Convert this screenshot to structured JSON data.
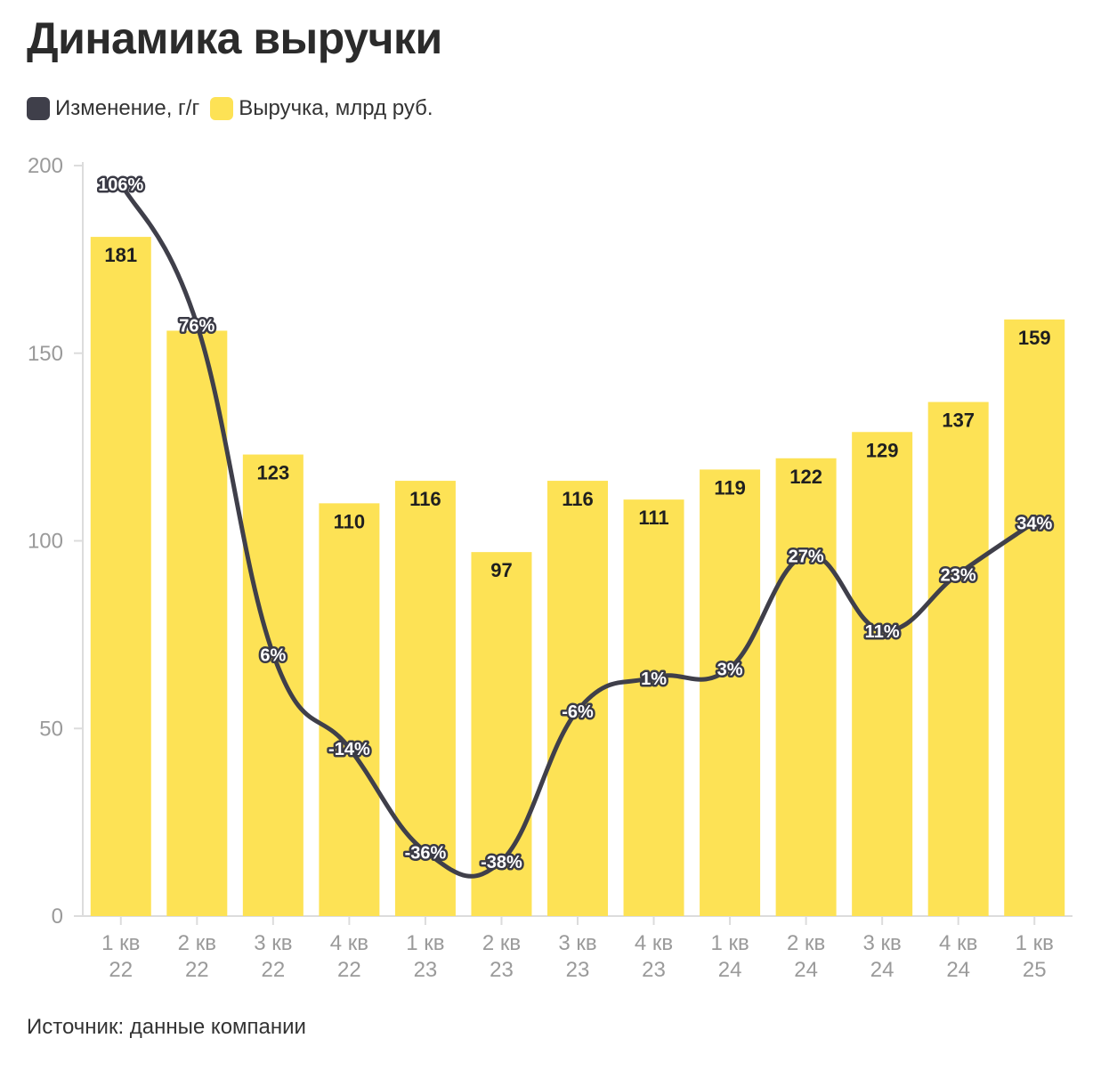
{
  "title": "Динамика выручки",
  "legend": {
    "items": [
      {
        "label": "Изменение, г/г",
        "color": "#3f3f4a"
      },
      {
        "label": "Выручка, млрд руб.",
        "color": "#fde255"
      }
    ]
  },
  "source": "Источник: данные компании",
  "chart_data": {
    "type": "bar",
    "categories": [
      "1 кв 22",
      "2 кв 22",
      "3 кв 22",
      "4 кв 22",
      "1 кв 23",
      "2 кв 23",
      "3 кв 23",
      "4 кв 23",
      "1 кв 24",
      "2 кв 24",
      "3 кв 24",
      "4 кв 24",
      "1 кв 25"
    ],
    "category_lines": [
      [
        "1 кв",
        "22"
      ],
      [
        "2 кв",
        "22"
      ],
      [
        "3 кв",
        "22"
      ],
      [
        "4 кв",
        "22"
      ],
      [
        "1 кв",
        "23"
      ],
      [
        "2 кв",
        "23"
      ],
      [
        "3 кв",
        "23"
      ],
      [
        "4 кв",
        "23"
      ],
      [
        "1 кв",
        "24"
      ],
      [
        "2 кв",
        "24"
      ],
      [
        "3 кв",
        "24"
      ],
      [
        "4 кв",
        "24"
      ],
      [
        "1 кв",
        "25"
      ]
    ],
    "series": [
      {
        "name": "Выручка, млрд руб.",
        "type": "bar",
        "color": "#fde255",
        "values": [
          181,
          156,
          123,
          110,
          116,
          97,
          116,
          111,
          119,
          122,
          129,
          137,
          159
        ],
        "labels": [
          "181",
          "",
          "123",
          "110",
          "116",
          "97",
          "116",
          "111",
          "119",
          "122",
          "129",
          "137",
          "159"
        ]
      },
      {
        "name": "Изменение, г/г",
        "type": "line",
        "color": "#3f3f4a",
        "values": [
          106,
          76,
          6,
          -14,
          -36,
          -38,
          -6,
          1,
          3,
          27,
          11,
          23,
          34
        ],
        "labels": [
          "106%",
          "76%",
          "6%",
          "-14%",
          "-36%",
          "-38%",
          "-6%",
          "1%",
          "3%",
          "27%",
          "11%",
          "23%",
          "34%"
        ]
      }
    ],
    "y_axis": {
      "range": [
        0,
        200
      ],
      "ticks": [
        0,
        50,
        100,
        150,
        200
      ]
    },
    "grid": false,
    "legend_position": "top-left"
  }
}
